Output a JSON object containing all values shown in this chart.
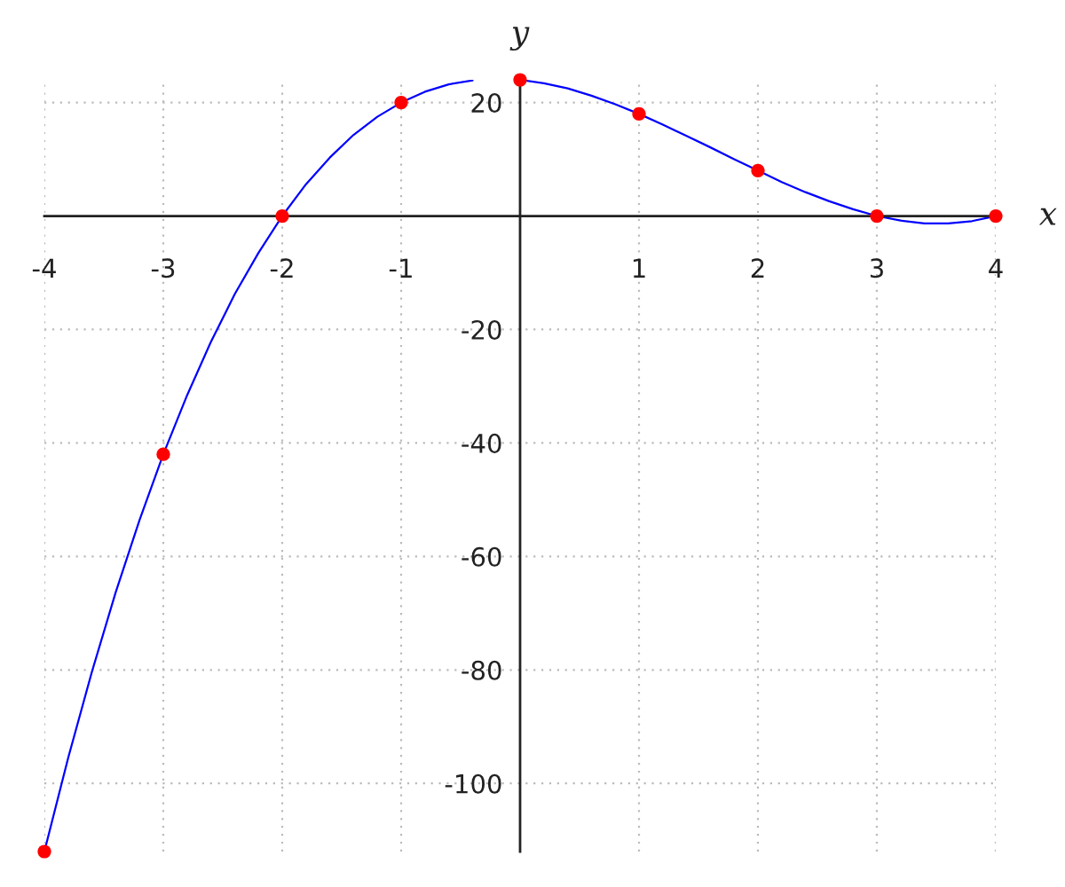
{
  "chart_data": {
    "type": "line",
    "xlabel": "x",
    "ylabel": "y",
    "xlim": [
      -4,
      4
    ],
    "ylim": [
      -112,
      24
    ],
    "xticks": [
      -4,
      -3,
      -2,
      -1,
      1,
      2,
      3,
      4
    ],
    "yticks": [
      -100,
      -80,
      -60,
      -40,
      -20,
      20
    ],
    "grid": true,
    "legend": false,
    "series": [
      {
        "color": "#0000ff",
        "line_style": "solid",
        "marker": "none",
        "x": [
          -4.0,
          -3.8,
          -3.6,
          -3.4,
          -3.2,
          -3.0,
          -2.8,
          -2.6,
          -2.4,
          -2.2,
          -2.0,
          -1.8,
          -1.6,
          -1.4,
          -1.2,
          -1.0,
          -0.8,
          -0.6,
          -0.4,
          -0.2,
          0.0,
          0.2,
          0.4,
          0.6,
          0.8,
          1.0,
          1.2,
          1.4,
          1.6,
          1.8,
          2.0,
          2.2,
          2.4,
          2.6,
          2.8,
          3.0,
          3.2,
          3.4,
          3.6,
          3.8,
          4.0
        ],
        "values": [
          -112,
          -95.5,
          -80.3,
          -66.3,
          -53.6,
          -42,
          -31.6,
          -22.2,
          -13.8,
          -6.5,
          0,
          5.6,
          10.3,
          14.3,
          17.5,
          20,
          21.9,
          23.2,
          23.9,
          null,
          24,
          23.4,
          22.5,
          21.2,
          19.7,
          18,
          16.1,
          14.1,
          12.1,
          10.0,
          8,
          6.0,
          4.2,
          2.6,
          1.2,
          0,
          -0.8,
          -1.3,
          -1.3,
          -0.9,
          0
        ]
      },
      {
        "type": "scatter",
        "color": "#ff0000",
        "marker": "circle",
        "x": [
          -4,
          -3,
          -2,
          -1,
          0,
          1,
          2,
          3,
          4
        ],
        "values": [
          -112,
          -42,
          0,
          20,
          24,
          18,
          8,
          0,
          0
        ]
      }
    ]
  }
}
